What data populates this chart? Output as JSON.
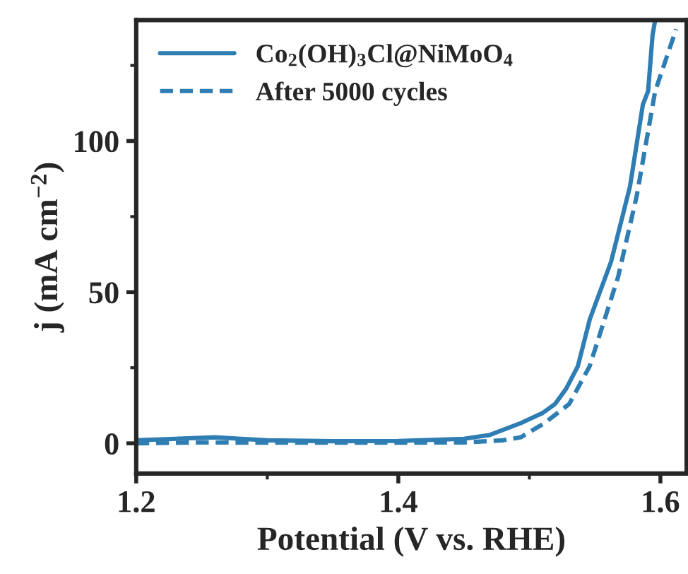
{
  "chart_data": {
    "type": "line",
    "xlabel": "Potential (V vs. RHE)",
    "ylabel": "j (mA cm$^{−2}$)",
    "xlim": [
      1.2,
      1.62
    ],
    "ylim": [
      -10,
      140
    ],
    "xticks": [
      1.2,
      {
        "value": 1.3,
        "label": null
      },
      1.4,
      {
        "value": 1.5,
        "label": null
      },
      1.6
    ],
    "yticks": [
      0,
      {
        "value": 25,
        "label": null
      },
      50,
      {
        "value": 75,
        "label": null
      },
      100,
      {
        "value": 125,
        "label": null
      }
    ],
    "grid": false,
    "legend": "top left",
    "marker": "none",
    "series": [
      {
        "name": "Co$_{2}$(OH)$_{3}$Cl@NiMoO$_{4}$",
        "color": "#2e7db3",
        "line_style": "solid",
        "x": [
          1.2,
          1.23,
          1.26,
          1.28,
          1.3,
          1.35,
          1.4,
          1.43,
          1.45,
          1.47,
          1.4935,
          1.51,
          1.5196,
          1.528,
          1.537,
          1.5461,
          1.5623,
          1.5768,
          1.5866,
          1.5906,
          1.594,
          1.596
        ],
        "values": [
          1,
          1.5,
          2,
          1.5,
          1,
          0.7,
          0.8,
          1.2,
          1.5,
          2.8,
          6.7,
          10,
          13,
          18,
          25.5,
          41,
          60,
          85,
          112,
          116.5,
          135,
          140
        ]
      },
      {
        "name": "After 5000 cycles",
        "color": "#2e7db3",
        "line_style": "dashed",
        "x": [
          1.2,
          1.25,
          1.3,
          1.35,
          1.4,
          1.45,
          1.48,
          1.4935,
          1.5116,
          1.5304,
          1.546,
          1.5677,
          1.582,
          1.596,
          1.612
        ],
        "values": [
          0,
          0.3,
          0.2,
          0.2,
          0.2,
          0.3,
          1,
          2,
          6.7,
          13,
          25.5,
          55,
          82,
          116.5,
          137
        ]
      }
    ]
  }
}
